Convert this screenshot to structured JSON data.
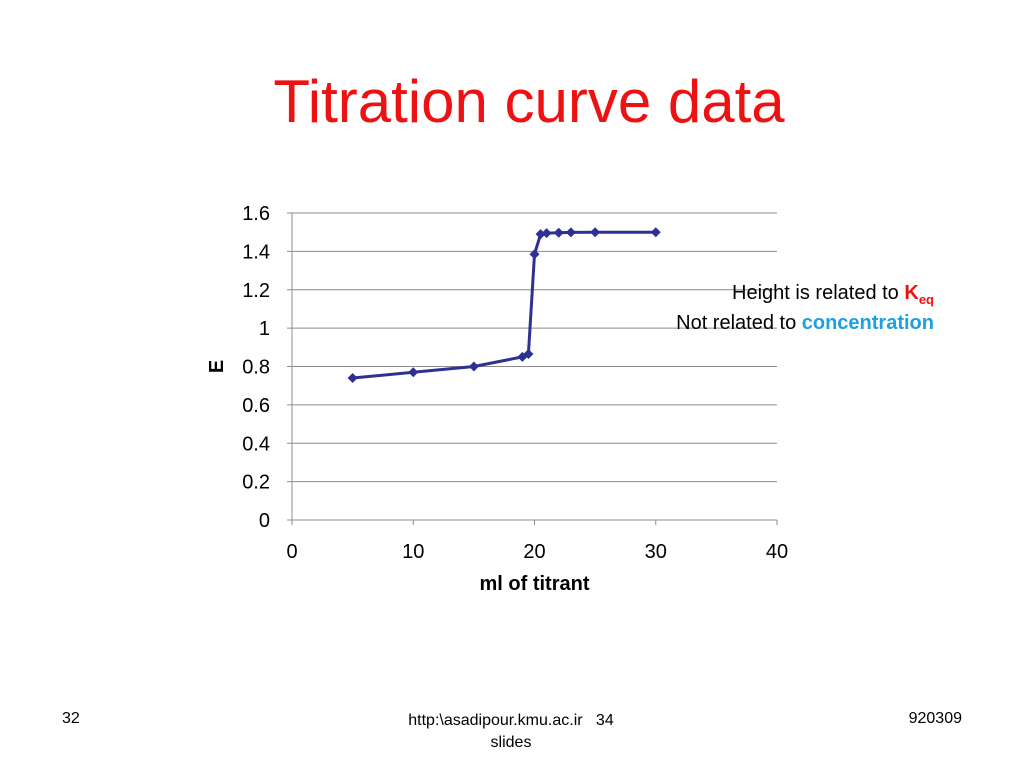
{
  "slide": {
    "title": "Titration curve data",
    "annotation_line1_prefix": "Height is related to ",
    "annotation_line1_highlight": "K",
    "annotation_line1_sub": "eq",
    "annotation_line2_prefix": "Not related to ",
    "annotation_line2_highlight": "concentration",
    "colors": {
      "title": "#ee1111",
      "keq": "#ee1111",
      "concentration": "#1ba1e2",
      "series": "#2e3192"
    }
  },
  "footer": {
    "page_number": "32",
    "source": "http:\\asadipour.kmu.ac.ir",
    "slide_count": "34",
    "slides_word": "slides",
    "date_code": "920309"
  },
  "chart_data": {
    "type": "scatter",
    "title": "",
    "xlabel": "ml of titrant",
    "ylabel": "E",
    "xlim": [
      0,
      40
    ],
    "ylim": [
      0,
      1.6
    ],
    "xticks": [
      "0",
      "10",
      "20",
      "30",
      "40"
    ],
    "yticks": [
      "0",
      "0.2",
      "0.4",
      "0.6",
      "0.8",
      "1",
      "1.2",
      "1.4",
      "1.6"
    ],
    "grid": "horizontal",
    "legend": "none",
    "series": [
      {
        "x": [
          5,
          10,
          15,
          19,
          19.5,
          20,
          20.5,
          21,
          22,
          23,
          25,
          30
        ],
        "y": [
          0.74,
          0.77,
          0.8,
          0.85,
          0.865,
          1.385,
          1.49,
          1.495,
          1.497,
          1.499,
          1.5,
          1.5
        ]
      }
    ]
  }
}
